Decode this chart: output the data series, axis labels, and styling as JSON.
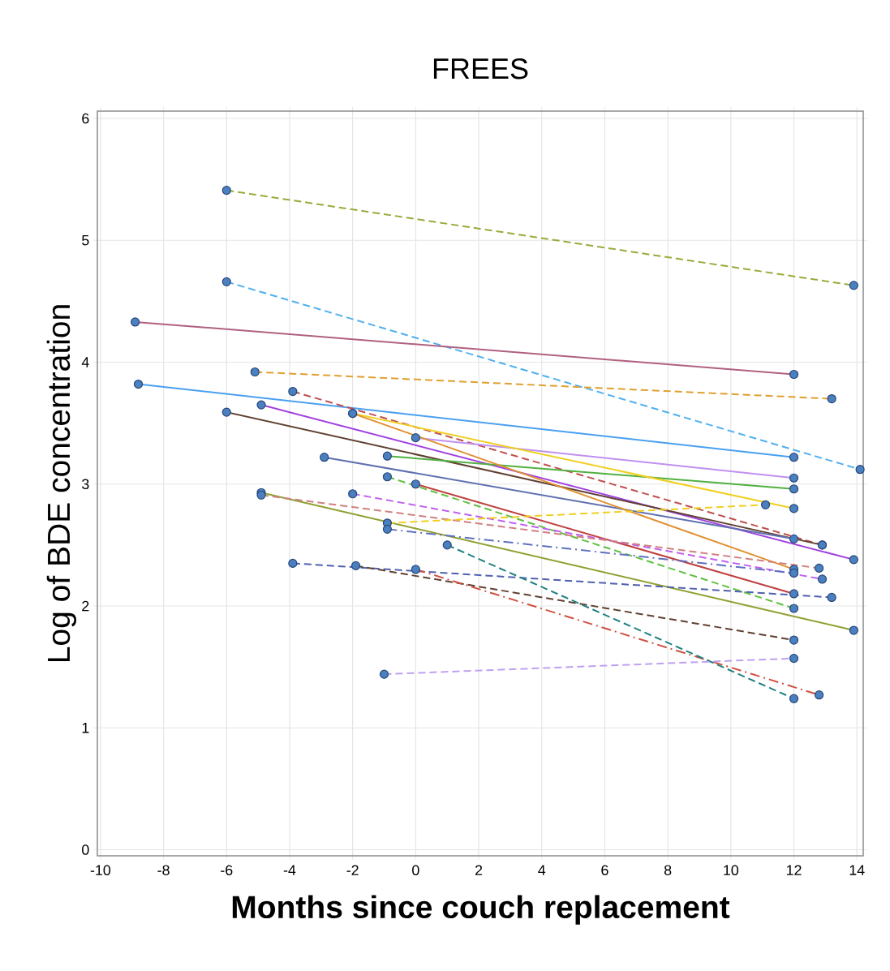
{
  "chart_data": {
    "type": "line",
    "title": "FREES",
    "xlabel": "**Months since couch replacement**",
    "ylabel": "Log of BDE concentration",
    "xlim": [
      -10.1,
      14.2
    ],
    "ylim": [
      -0.05,
      6.06
    ],
    "xticks": [
      -10,
      -8,
      -6,
      -4,
      -2,
      0,
      2,
      4,
      6,
      8,
      10,
      12,
      14
    ],
    "yticks": [
      0,
      1,
      2,
      3,
      4,
      5,
      6
    ],
    "grid": true,
    "marker": "circle",
    "series": [
      {
        "color": "#9aaa3a",
        "line_style": "dashed",
        "x": [
          -6,
          13.9
        ],
        "values": [
          5.41,
          4.63
        ]
      },
      {
        "color": "#4fb0f0",
        "line_style": "dashed",
        "x": [
          -6,
          14.1
        ],
        "values": [
          4.66,
          3.12
        ]
      },
      {
        "color": "#b06080",
        "line_style": "solid",
        "x": [
          -8.9,
          12
        ],
        "values": [
          4.33,
          3.9
        ]
      },
      {
        "color": "#e0a030",
        "line_style": "dashed",
        "x": [
          -5.1,
          13.2
        ],
        "values": [
          3.92,
          3.7
        ]
      },
      {
        "color": "#4aa0f0",
        "line_style": "solid",
        "x": [
          -8.8,
          12
        ],
        "values": [
          3.82,
          3.22
        ]
      },
      {
        "color": "#c05050",
        "line_style": "dashed",
        "x": [
          -3.9,
          12.9
        ],
        "values": [
          3.76,
          2.5
        ]
      },
      {
        "color": "#a040e0",
        "line_style": "solid",
        "x": [
          -4.9,
          13.9
        ],
        "values": [
          3.65,
          2.38
        ]
      },
      {
        "color": "#604030",
        "line_style": "solid",
        "x": [
          -6,
          12.9
        ],
        "values": [
          3.59,
          2.5
        ]
      },
      {
        "color": "#6070b0",
        "line_style": "solid",
        "x": [
          -2.9,
          12
        ],
        "values": [
          3.22,
          2.55
        ]
      },
      {
        "color": "#50b040",
        "line_style": "solid",
        "x": [
          -0.9,
          12
        ],
        "values": [
          3.23,
          2.96
        ]
      },
      {
        "color": "#c090f0",
        "line_style": "solid",
        "x": [
          0,
          12
        ],
        "values": [
          3.38,
          3.05
        ]
      },
      {
        "color": "#f0d020",
        "line_style": "solid",
        "x": [
          -2,
          12
        ],
        "values": [
          3.58,
          2.8
        ]
      },
      {
        "color": "#e09030",
        "line_style": "solid",
        "x": [
          -2,
          12
        ],
        "values": [
          3.58,
          2.3
        ]
      },
      {
        "color": "#60c040",
        "line_style": "dashed",
        "x": [
          -0.9,
          12
        ],
        "values": [
          3.06,
          1.98
        ]
      },
      {
        "color": "#c04040",
        "line_style": "solid",
        "x": [
          0,
          12
        ],
        "values": [
          3.0,
          2.1
        ]
      },
      {
        "color": "#c060f0",
        "line_style": "dashed",
        "x": [
          -2,
          12.9
        ],
        "values": [
          2.92,
          2.22
        ]
      },
      {
        "color": "#90a030",
        "line_style": "solid",
        "x": [
          -4.9,
          13.9
        ],
        "values": [
          2.93,
          1.8
        ]
      },
      {
        "color": "#d08080",
        "line_style": "dashed",
        "x": [
          -4.9,
          12.8
        ],
        "values": [
          2.91,
          2.31
        ]
      },
      {
        "color": "#f0d020",
        "line_style": "dashed",
        "x": [
          -0.9,
          11.1
        ],
        "values": [
          2.68,
          2.83
        ]
      },
      {
        "color": "#6070c0",
        "line_style": "dashdot",
        "x": [
          -0.9,
          12
        ],
        "values": [
          2.63,
          2.27
        ]
      },
      {
        "color": "#5060b0",
        "line_style": "dashed",
        "x": [
          -3.9,
          13.2
        ],
        "values": [
          2.35,
          2.07
        ]
      },
      {
        "color": "#604030",
        "line_style": "dashed",
        "x": [
          -1.9,
          12
        ],
        "values": [
          2.33,
          1.72
        ]
      },
      {
        "color": "#d05040",
        "line_style": "dashdot",
        "x": [
          0,
          12.8
        ],
        "values": [
          2.3,
          1.27
        ]
      },
      {
        "color": "#208080",
        "line_style": "dashed",
        "x": [
          1,
          12
        ],
        "values": [
          2.5,
          1.24
        ]
      },
      {
        "color": "#c0a0f0",
        "line_style": "dashed",
        "x": [
          -1,
          12
        ],
        "values": [
          1.44,
          1.57
        ]
      }
    ]
  }
}
